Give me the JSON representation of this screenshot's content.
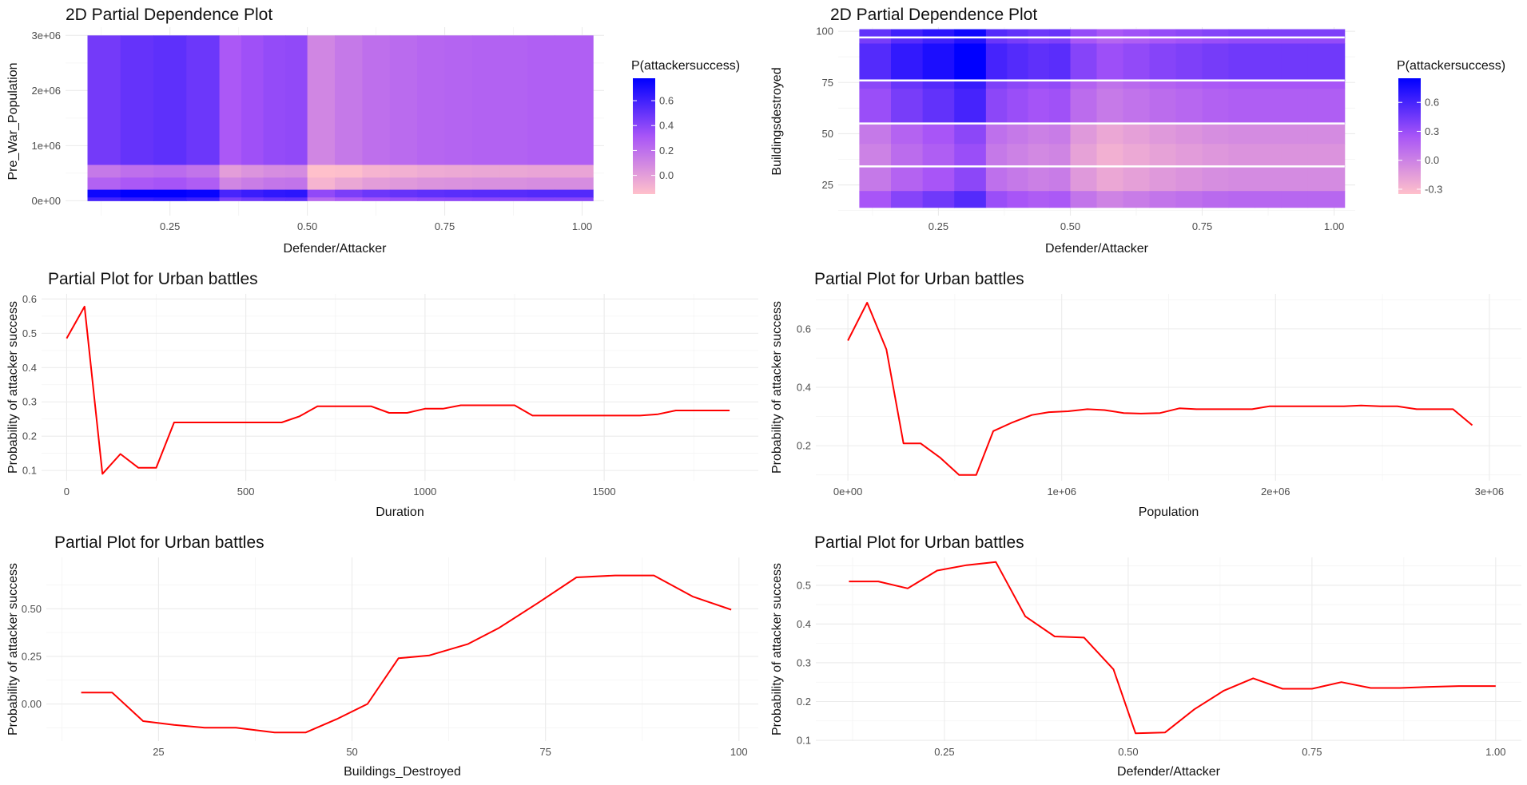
{
  "chart_data": [
    {
      "id": "heat1",
      "type": "heatmap",
      "title": "2D Partial Dependence Plot",
      "xlabel": "Defender/Attacker",
      "ylabel": "Pre_War_Population",
      "xlim": [
        0.06,
        1.04
      ],
      "ylim": [
        -270000,
        3150000
      ],
      "x_ticks": [
        {
          "v": 0.25,
          "label": "0.25"
        },
        {
          "v": 0.5,
          "label": "0.50"
        },
        {
          "v": 0.75,
          "label": "0.75"
        },
        {
          "v": 1.0,
          "label": "1.00"
        }
      ],
      "y_ticks": [
        {
          "v": 0,
          "label": "0e+00"
        },
        {
          "v": 1000000,
          "label": "1e+06"
        },
        {
          "v": 2000000,
          "label": "2e+06"
        },
        {
          "v": 3000000,
          "label": "3e+06"
        }
      ],
      "x_edges": [
        0.1,
        0.16,
        0.22,
        0.28,
        0.34,
        0.38,
        0.42,
        0.46,
        0.5,
        0.55,
        0.6,
        0.65,
        0.7,
        0.75,
        0.8,
        0.85,
        0.9,
        0.95,
        1.02
      ],
      "x_profile": [
        0.04,
        0.08,
        0.1,
        0.06,
        -0.12,
        -0.08,
        -0.05,
        -0.04,
        -0.32,
        -0.26,
        -0.22,
        -0.2,
        -0.18,
        -0.17,
        -0.16,
        -0.16,
        -0.15,
        -0.15
      ],
      "y_bands": [
        {
          "from": 650000,
          "to": 3000000,
          "base": 0.42
        },
        {
          "from": 420000,
          "to": 650000,
          "base": 0.12
        },
        {
          "from": 200000,
          "to": 420000,
          "base": 0.22
        },
        {
          "from": 60000,
          "to": 200000,
          "base": 0.7
        },
        {
          "from": 0,
          "to": 60000,
          "base": 0.55
        }
      ],
      "legend": {
        "title": "P(attackersuccess)",
        "min": -0.15,
        "max": 0.78,
        "ticks": [
          {
            "v": 0.0,
            "label": "0.0"
          },
          {
            "v": 0.2,
            "label": "0.2"
          },
          {
            "v": 0.4,
            "label": "0.4"
          },
          {
            "v": 0.6,
            "label": "0.6"
          }
        ]
      },
      "colors": {
        "low": "#ffc0cb",
        "mid": "#a855f7",
        "high": "#0000ff"
      }
    },
    {
      "id": "heat2",
      "type": "heatmap",
      "title": "2D Partial Dependence Plot",
      "xlabel": "Defender/Attacker",
      "ylabel": "Buildingsdestroyed",
      "xlim": [
        0.06,
        1.04
      ],
      "ylim": [
        10,
        102
      ],
      "x_ticks": [
        {
          "v": 0.25,
          "label": "0.25"
        },
        {
          "v": 0.5,
          "label": "0.50"
        },
        {
          "v": 0.75,
          "label": "0.75"
        },
        {
          "v": 1.0,
          "label": "1.00"
        }
      ],
      "y_ticks": [
        {
          "v": 25,
          "label": "25"
        },
        {
          "v": 50,
          "label": "50"
        },
        {
          "v": 75,
          "label": "75"
        },
        {
          "v": 100,
          "label": "100"
        }
      ],
      "x_edges": [
        0.1,
        0.16,
        0.22,
        0.28,
        0.34,
        0.38,
        0.42,
        0.46,
        0.5,
        0.55,
        0.6,
        0.65,
        0.7,
        0.75,
        0.8,
        0.85,
        0.9,
        0.95,
        1.02
      ],
      "x_profile": [
        0.0,
        0.12,
        0.2,
        0.3,
        0.05,
        0.0,
        -0.04,
        -0.02,
        -0.18,
        -0.26,
        -0.22,
        -0.18,
        -0.15,
        -0.12,
        -0.1,
        -0.1,
        -0.1,
        -0.1
      ],
      "y_bands": [
        {
          "from": 97,
          "to": 101,
          "base": 0.5
        },
        {
          "from": 94,
          "to": 97,
          "base": 0.42
        },
        {
          "from": 76,
          "to": 94,
          "base": 0.55
        },
        {
          "from": 72,
          "to": 76,
          "base": 0.35
        },
        {
          "from": 55,
          "to": 72,
          "base": 0.3
        },
        {
          "from": 45,
          "to": 55,
          "base": 0.05
        },
        {
          "from": 34,
          "to": 45,
          "base": 0.0
        },
        {
          "from": 22,
          "to": 34,
          "base": 0.05
        },
        {
          "from": 14,
          "to": 22,
          "base": 0.25
        }
      ],
      "white_lines": [
        97,
        76,
        55,
        34
      ],
      "legend": {
        "title": "P(attackersuccess)",
        "min": -0.35,
        "max": 0.85,
        "ticks": [
          {
            "v": -0.3,
            "label": "-0.3"
          },
          {
            "v": 0.0,
            "label": "0.0"
          },
          {
            "v": 0.3,
            "label": "0.3"
          },
          {
            "v": 0.6,
            "label": "0.6"
          }
        ]
      },
      "colors": {
        "low": "#ffc0cb",
        "mid": "#a855f7",
        "high": "#0000ff"
      }
    },
    {
      "id": "line1",
      "type": "line",
      "title": "Partial Plot for Urban battles",
      "xlabel": "Duration",
      "ylabel": "Probability of attacker success",
      "xlim": [
        -70,
        1930
      ],
      "ylim": [
        0.07,
        0.615
      ],
      "x_ticks": [
        {
          "v": 0,
          "label": "0"
        },
        {
          "v": 500,
          "label": "500"
        },
        {
          "v": 1000,
          "label": "1000"
        },
        {
          "v": 1500,
          "label": "1500"
        }
      ],
      "y_ticks": [
        {
          "v": 0.1,
          "label": "0.1"
        },
        {
          "v": 0.2,
          "label": "0.2"
        },
        {
          "v": 0.3,
          "label": "0.3"
        },
        {
          "v": 0.4,
          "label": "0.4"
        },
        {
          "v": 0.5,
          "label": "0.5"
        },
        {
          "v": 0.6,
          "label": "0.6"
        }
      ],
      "x": [
        0,
        50,
        100,
        150,
        200,
        250,
        300,
        350,
        400,
        450,
        500,
        550,
        600,
        650,
        700,
        750,
        800,
        850,
        900,
        950,
        1000,
        1050,
        1100,
        1150,
        1200,
        1250,
        1300,
        1350,
        1400,
        1450,
        1500,
        1550,
        1600,
        1650,
        1700,
        1750,
        1800,
        1850
      ],
      "y": [
        0.485,
        0.578,
        0.09,
        0.148,
        0.108,
        0.108,
        0.24,
        0.24,
        0.24,
        0.24,
        0.24,
        0.24,
        0.24,
        0.258,
        0.287,
        0.287,
        0.287,
        0.287,
        0.268,
        0.268,
        0.28,
        0.28,
        0.29,
        0.29,
        0.29,
        0.29,
        0.26,
        0.26,
        0.26,
        0.26,
        0.26,
        0.26,
        0.26,
        0.264,
        0.275,
        0.275,
        0.275,
        0.275
      ]
    },
    {
      "id": "line2",
      "type": "line",
      "title": "Partial Plot for Urban battles",
      "xlabel": "Population",
      "ylabel": "Probability of attacker success",
      "xlim": [
        -150000,
        3150000
      ],
      "ylim": [
        0.08,
        0.72
      ],
      "x_ticks": [
        {
          "v": 0,
          "label": "0e+00"
        },
        {
          "v": 1000000,
          "label": "1e+06"
        },
        {
          "v": 2000000,
          "label": "2e+06"
        },
        {
          "v": 3000000,
          "label": "3e+06"
        }
      ],
      "y_ticks": [
        {
          "v": 0.2,
          "label": "0.2"
        },
        {
          "v": 0.4,
          "label": "0.4"
        },
        {
          "v": 0.6,
          "label": "0.6"
        }
      ],
      "x": [
        0,
        90000,
        180000,
        260000,
        340000,
        430000,
        520000,
        600000,
        680000,
        770000,
        860000,
        940000,
        1030000,
        1120000,
        1200000,
        1290000,
        1370000,
        1460000,
        1550000,
        1630000,
        1720000,
        1800000,
        1890000,
        1970000,
        2060000,
        2140000,
        2230000,
        2320000,
        2400000,
        2490000,
        2570000,
        2660000,
        2750000,
        2830000,
        2920000
      ],
      "y": [
        0.56,
        0.69,
        0.53,
        0.208,
        0.208,
        0.16,
        0.1,
        0.1,
        0.25,
        0.28,
        0.305,
        0.315,
        0.318,
        0.325,
        0.322,
        0.312,
        0.31,
        0.312,
        0.328,
        0.325,
        0.325,
        0.325,
        0.325,
        0.335,
        0.335,
        0.335,
        0.335,
        0.335,
        0.338,
        0.335,
        0.335,
        0.325,
        0.325,
        0.325,
        0.27
      ]
    },
    {
      "id": "line3",
      "type": "line",
      "title": "Partial Plot for Urban battles",
      "xlabel": "Buildings_Destroyed",
      "ylabel": "Probability of attacker success",
      "xlim": [
        10.5,
        102.5
      ],
      "ylim": [
        -0.195,
        0.77
      ],
      "x_ticks": [
        {
          "v": 25,
          "label": "25"
        },
        {
          "v": 50,
          "label": "50"
        },
        {
          "v": 75,
          "label": "75"
        },
        {
          "v": 100,
          "label": "100"
        }
      ],
      "y_ticks": [
        {
          "v": 0.0,
          "label": "0.00"
        },
        {
          "v": 0.25,
          "label": "0.25"
        },
        {
          "v": 0.5,
          "label": "0.50"
        }
      ],
      "x": [
        15,
        19,
        23,
        27,
        31,
        35,
        40,
        44,
        48,
        52,
        56,
        60,
        65,
        69,
        74,
        79,
        84,
        89,
        94,
        99
      ],
      "y": [
        0.06,
        0.06,
        -0.09,
        -0.11,
        -0.125,
        -0.125,
        -0.15,
        -0.15,
        -0.08,
        0.0,
        0.24,
        0.255,
        0.315,
        0.4,
        0.53,
        0.665,
        0.675,
        0.675,
        0.565,
        0.495
      ]
    },
    {
      "id": "line4",
      "type": "line",
      "title": "Partial Plot for Urban battles",
      "xlabel": "Defender/Attacker",
      "ylabel": "Probability of attacker success",
      "xlim": [
        0.075,
        1.035
      ],
      "ylim": [
        0.098,
        0.572
      ],
      "x_ticks": [
        {
          "v": 0.25,
          "label": "0.25"
        },
        {
          "v": 0.5,
          "label": "0.50"
        },
        {
          "v": 0.75,
          "label": "0.75"
        },
        {
          "v": 1.0,
          "label": "1.00"
        }
      ],
      "y_ticks": [
        {
          "v": 0.1,
          "label": "0.1"
        },
        {
          "v": 0.2,
          "label": "0.2"
        },
        {
          "v": 0.3,
          "label": "0.3"
        },
        {
          "v": 0.4,
          "label": "0.4"
        },
        {
          "v": 0.5,
          "label": "0.5"
        }
      ],
      "x": [
        0.12,
        0.16,
        0.2,
        0.24,
        0.28,
        0.32,
        0.36,
        0.4,
        0.44,
        0.48,
        0.51,
        0.55,
        0.59,
        0.63,
        0.67,
        0.71,
        0.75,
        0.79,
        0.83,
        0.87,
        0.91,
        0.95,
        1.0
      ],
      "y": [
        0.51,
        0.51,
        0.492,
        0.538,
        0.552,
        0.56,
        0.42,
        0.368,
        0.365,
        0.283,
        0.118,
        0.12,
        0.18,
        0.228,
        0.26,
        0.233,
        0.233,
        0.25,
        0.235,
        0.235,
        0.238,
        0.24,
        0.24
      ]
    }
  ]
}
